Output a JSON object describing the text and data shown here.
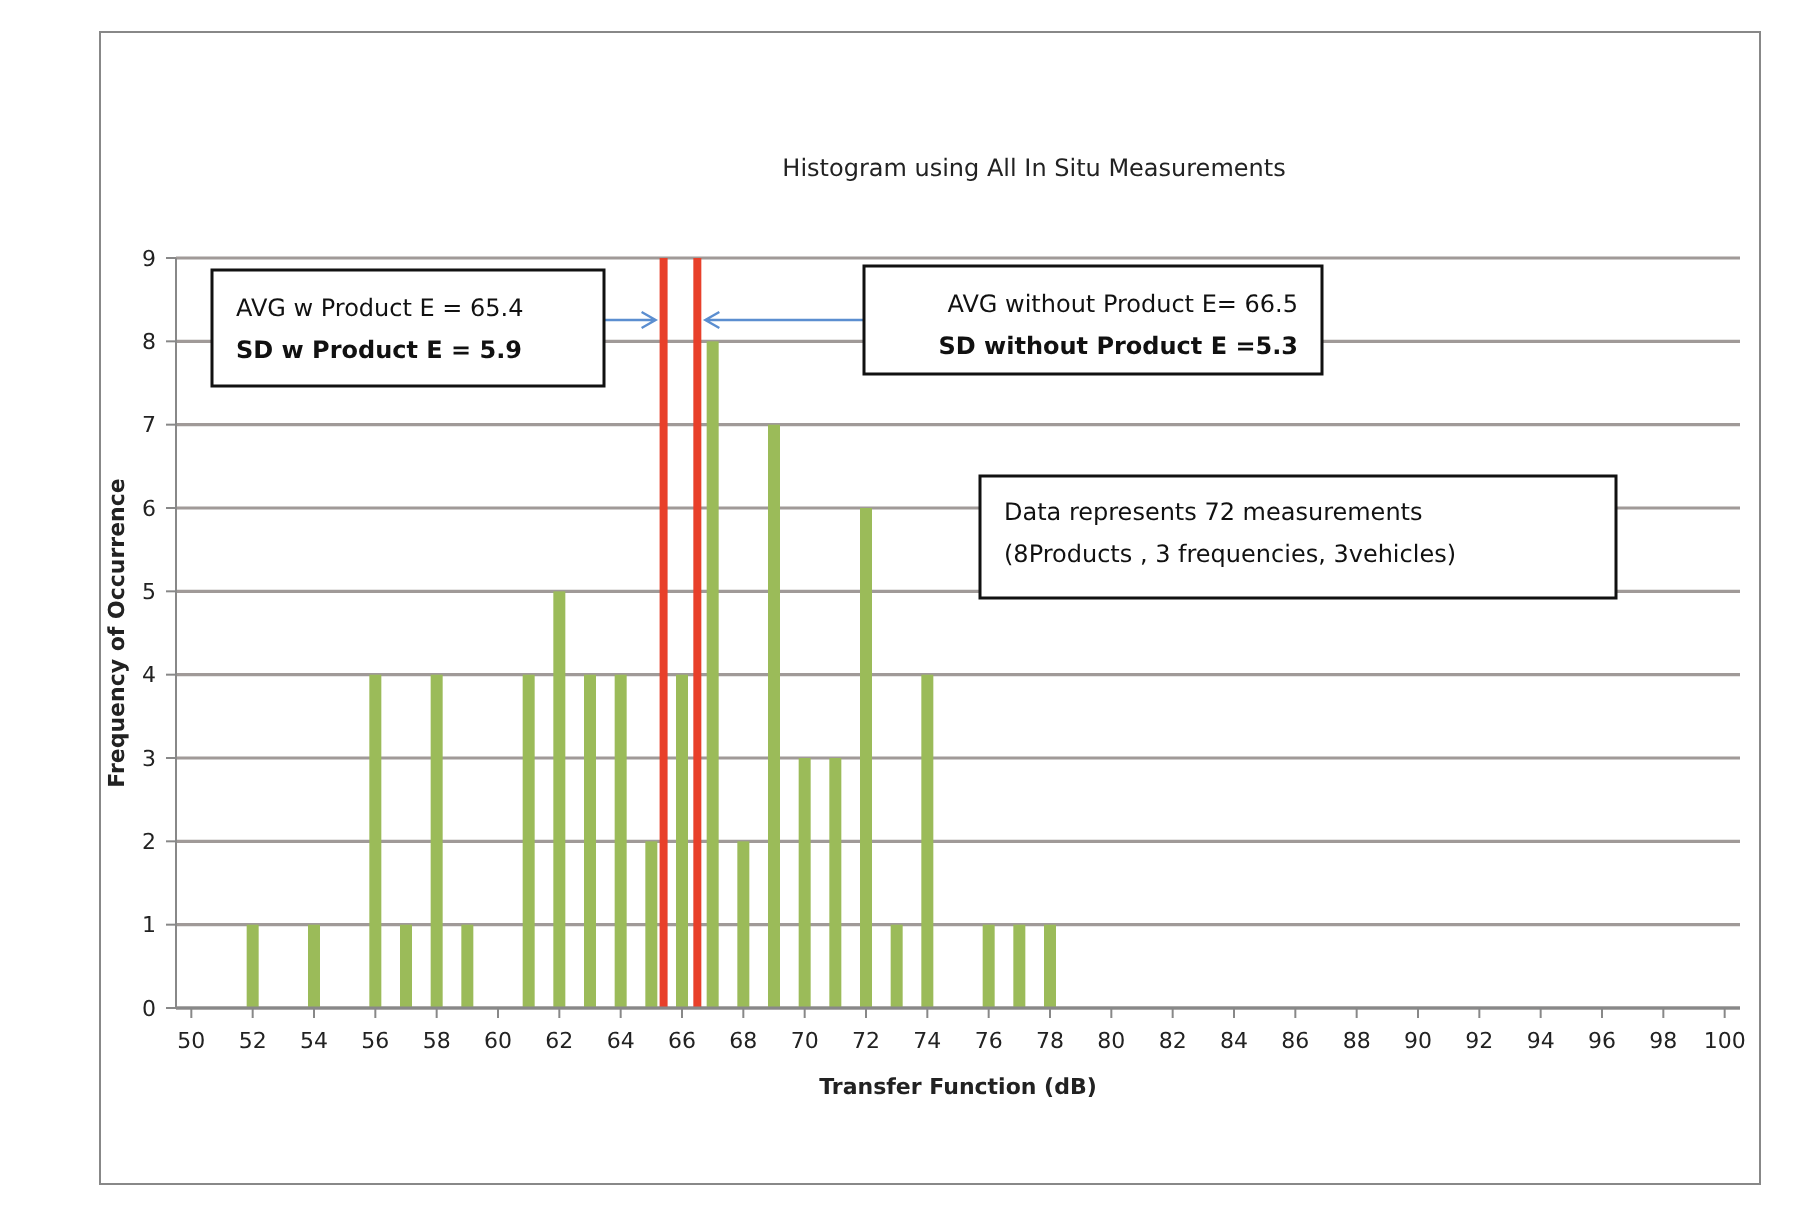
{
  "chart_data": {
    "type": "bar",
    "title": "Histogram using All  In Situ Measurements",
    "xlabel": "Transfer Function (dB)",
    "ylabel": "Frequency of Occurrence",
    "x": [
      52,
      54,
      56,
      57,
      58,
      59,
      61,
      62,
      63,
      64,
      65,
      66,
      67,
      68,
      69,
      70,
      71,
      72,
      73,
      74,
      76,
      77,
      78
    ],
    "values": [
      1,
      1,
      4,
      1,
      4,
      1,
      4,
      5,
      4,
      4,
      2,
      4,
      8,
      2,
      7,
      3,
      3,
      6,
      1,
      4,
      1,
      1,
      1
    ],
    "color": "#9bbb59",
    "xlim": [
      49.5,
      100.5
    ],
    "xticks": [
      50,
      52,
      54,
      56,
      58,
      60,
      62,
      64,
      66,
      68,
      70,
      72,
      74,
      76,
      78,
      80,
      82,
      84,
      86,
      88,
      90,
      92,
      94,
      96,
      98,
      100
    ],
    "ylim": [
      0,
      9
    ],
    "yticks": [
      0,
      1,
      2,
      3,
      4,
      5,
      6,
      7,
      8,
      9
    ],
    "grid": "y",
    "ref_lines": [
      {
        "axis": "x",
        "value": 65.4,
        "color": "#e8402a"
      },
      {
        "axis": "x",
        "value": 66.5,
        "color": "#e8402a"
      }
    ],
    "annotations": [
      "AVG w Product E = 65.4",
      "SD w Product E = 5.9",
      "AVG without Product E= 66.5",
      "SD without Product E =5.3",
      "Data represents 72 measurements",
      "(8Products , 3 frequencies, 3vehicles)"
    ]
  }
}
